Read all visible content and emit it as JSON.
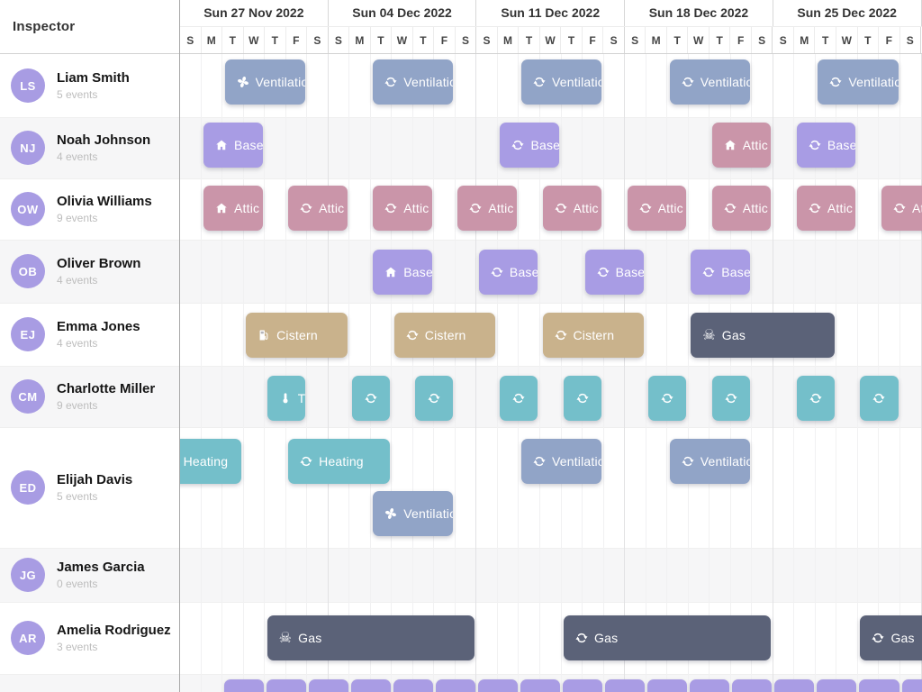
{
  "header": {
    "sidebar_title": "Inspector",
    "weeks": [
      "Sun 27 Nov 2022",
      "Sun 04 Dec 2022",
      "Sun 11 Dec 2022",
      "Sun 18 Dec 2022",
      "Sun 25 Dec 2022"
    ],
    "day_letters": [
      "S",
      "M",
      "T",
      "W",
      "T",
      "F",
      "S"
    ]
  },
  "palette": {
    "ventilation": "#91a4c7",
    "basement": "#a89ce4",
    "attic": "#ca95a9",
    "cistern": "#c9b28c",
    "utility": "#74bfca",
    "gas": "#5b6278",
    "strip": "#a99ce4",
    "avatar": "#a89ce3"
  },
  "resources": [
    {
      "initials": "LS",
      "name": "Liam Smith",
      "count": "5 events",
      "events": [
        {
          "label": "Ventilation",
          "icon": "fan",
          "type": "ventilation",
          "start": 2,
          "span": 4
        },
        {
          "label": "Ventilation",
          "icon": "refresh",
          "type": "ventilation",
          "start": 9,
          "span": 4
        },
        {
          "label": "Ventilation",
          "icon": "refresh",
          "type": "ventilation",
          "start": 16,
          "span": 4
        },
        {
          "label": "Ventilation",
          "icon": "refresh",
          "type": "ventilation",
          "start": 23,
          "span": 4
        },
        {
          "label": "Ventilation",
          "icon": "refresh",
          "type": "ventilation",
          "start": 30,
          "span": 4
        }
      ]
    },
    {
      "initials": "NJ",
      "name": "Noah Johnson",
      "count": "4 events",
      "events": [
        {
          "label": "Basement",
          "icon": "house",
          "type": "basement",
          "start": 1,
          "span": 3
        },
        {
          "label": "Basement",
          "icon": "refresh",
          "type": "basement",
          "start": 15,
          "span": 3
        },
        {
          "label": "Attic",
          "icon": "house",
          "type": "attic",
          "start": 25,
          "span": 3
        },
        {
          "label": "Basement",
          "icon": "refresh",
          "type": "basement",
          "start": 29,
          "span": 3
        }
      ]
    },
    {
      "initials": "OW",
      "name": "Olivia Williams",
      "count": "9 events",
      "events": [
        {
          "label": "Attic",
          "icon": "house",
          "type": "attic",
          "start": 1,
          "span": 3
        },
        {
          "label": "Attic",
          "icon": "refresh",
          "type": "attic",
          "start": 5,
          "span": 3
        },
        {
          "label": "Attic",
          "icon": "refresh",
          "type": "attic",
          "start": 9,
          "span": 3
        },
        {
          "label": "Attic",
          "icon": "refresh",
          "type": "attic",
          "start": 13,
          "span": 3
        },
        {
          "label": "Attic",
          "icon": "refresh",
          "type": "attic",
          "start": 17,
          "span": 3
        },
        {
          "label": "Attic",
          "icon": "refresh",
          "type": "attic",
          "start": 21,
          "span": 3
        },
        {
          "label": "Attic",
          "icon": "refresh",
          "type": "attic",
          "start": 25,
          "span": 3
        },
        {
          "label": "Attic",
          "icon": "refresh",
          "type": "attic",
          "start": 29,
          "span": 3
        },
        {
          "label": "Attic",
          "icon": "refresh",
          "type": "attic",
          "start": 33,
          "span": 3
        }
      ]
    },
    {
      "initials": "OB",
      "name": "Oliver Brown",
      "count": "4 events",
      "events": [
        {
          "label": "Basement",
          "icon": "house",
          "type": "basement",
          "start": 9,
          "span": 3
        },
        {
          "label": "Basement",
          "icon": "refresh",
          "type": "basement",
          "start": 14,
          "span": 3
        },
        {
          "label": "Basement",
          "icon": "refresh",
          "type": "basement",
          "start": 19,
          "span": 3
        },
        {
          "label": "Basement",
          "icon": "refresh",
          "type": "basement",
          "start": 24,
          "span": 3
        }
      ]
    },
    {
      "initials": "EJ",
      "name": "Emma Jones",
      "count": "4 events",
      "events": [
        {
          "label": "Cistern",
          "icon": "fuel-pump",
          "type": "cistern",
          "start": 3,
          "span": 5
        },
        {
          "label": "Cistern",
          "icon": "refresh",
          "type": "cistern",
          "start": 10,
          "span": 5
        },
        {
          "label": "Cistern",
          "icon": "refresh",
          "type": "cistern",
          "start": 17,
          "span": 5
        },
        {
          "label": "Gas",
          "icon": "skull",
          "type": "gas",
          "start": 24,
          "span": 7
        }
      ]
    },
    {
      "initials": "CM",
      "name": "Charlotte Miller",
      "count": "9 events",
      "events": [
        {
          "label": "Thermostat",
          "icon": "thermometer",
          "type": "utility",
          "start": 4,
          "span": 2
        },
        {
          "label": "",
          "icon": "refresh",
          "type": "utility",
          "start": 8,
          "span": 2
        },
        {
          "label": "",
          "icon": "refresh",
          "type": "utility",
          "start": 11,
          "span": 2
        },
        {
          "label": "",
          "icon": "refresh",
          "type": "utility",
          "start": 15,
          "span": 2
        },
        {
          "label": "",
          "icon": "refresh",
          "type": "utility",
          "start": 18,
          "span": 2
        },
        {
          "label": "",
          "icon": "refresh",
          "type": "utility",
          "start": 22,
          "span": 2
        },
        {
          "label": "",
          "icon": "refresh",
          "type": "utility",
          "start": 25,
          "span": 2
        },
        {
          "label": "",
          "icon": "refresh",
          "type": "utility",
          "start": 29,
          "span": 2
        },
        {
          "label": "",
          "icon": "refresh",
          "type": "utility",
          "start": 32,
          "span": 2
        }
      ]
    },
    {
      "initials": "ED",
      "name": "Elijah Davis",
      "count": "5 events",
      "events": [
        {
          "label": "Heating",
          "icon": "flame",
          "type": "utility",
          "start": -1.4,
          "span": 4.4
        },
        {
          "label": "Heating",
          "icon": "refresh",
          "type": "utility",
          "start": 5,
          "span": 5
        },
        {
          "label": "Ventilation",
          "icon": "fan",
          "type": "ventilation",
          "start": 9,
          "span": 4,
          "line": 1
        },
        {
          "label": "Ventilation",
          "icon": "refresh",
          "type": "ventilation",
          "start": 16,
          "span": 4
        },
        {
          "label": "Ventilation",
          "icon": "refresh",
          "type": "ventilation",
          "start": 23,
          "span": 4
        }
      ]
    },
    {
      "initials": "JG",
      "name": "James Garcia",
      "count": "0 events",
      "events": []
    },
    {
      "initials": "AR",
      "name": "Amelia Rodriguez",
      "count": "3 events",
      "events": [
        {
          "label": "Gas",
          "icon": "skull",
          "type": "gas",
          "start": 4,
          "span": 10
        },
        {
          "label": "Gas",
          "icon": "refresh",
          "type": "gas",
          "start": 18,
          "span": 10
        },
        {
          "label": "Gas",
          "icon": "refresh",
          "type": "gas",
          "start": 32,
          "span": 10
        }
      ]
    },
    {
      "initials": "",
      "name": "",
      "count": "",
      "partial": true,
      "strip": {
        "type": "strip",
        "span": 2,
        "starts": [
          2,
          4,
          6,
          8,
          10,
          12,
          14,
          16,
          18,
          20,
          22,
          24,
          26,
          28,
          30,
          32,
          34
        ]
      }
    }
  ]
}
